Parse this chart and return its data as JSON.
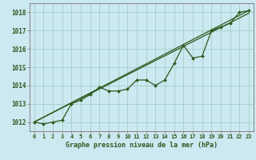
{
  "title": "Graphe pression niveau de la mer (hPa)",
  "background_color": "#cce8f0",
  "grid_color": "#99ccbb",
  "line_color": "#2d5a1e",
  "ylim": [
    1011.5,
    1018.5
  ],
  "yticks": [
    1012,
    1013,
    1014,
    1015,
    1016,
    1017,
    1018
  ],
  "xlim": [
    -0.5,
    23.5
  ],
  "hours": [
    0,
    1,
    2,
    3,
    4,
    5,
    6,
    7,
    8,
    9,
    10,
    11,
    12,
    13,
    14,
    15,
    16,
    17,
    18,
    19,
    20,
    21,
    22,
    23
  ],
  "line_data": [
    1012.0,
    1011.9,
    1012.0,
    1012.1,
    1013.0,
    1013.2,
    1013.5,
    1013.9,
    1013.7,
    1013.7,
    1013.8,
    1014.3,
    1014.3,
    1014.0,
    1014.3,
    1015.2,
    1016.2,
    1015.5,
    1015.6,
    1017.0,
    1017.2,
    1017.4,
    1018.0,
    1018.1
  ],
  "trend1_x": [
    0,
    23
  ],
  "trend1_y": [
    1012.0,
    1018.1
  ],
  "trend2_x": [
    0,
    23
  ],
  "trend2_y": [
    1012.0,
    1017.95
  ]
}
